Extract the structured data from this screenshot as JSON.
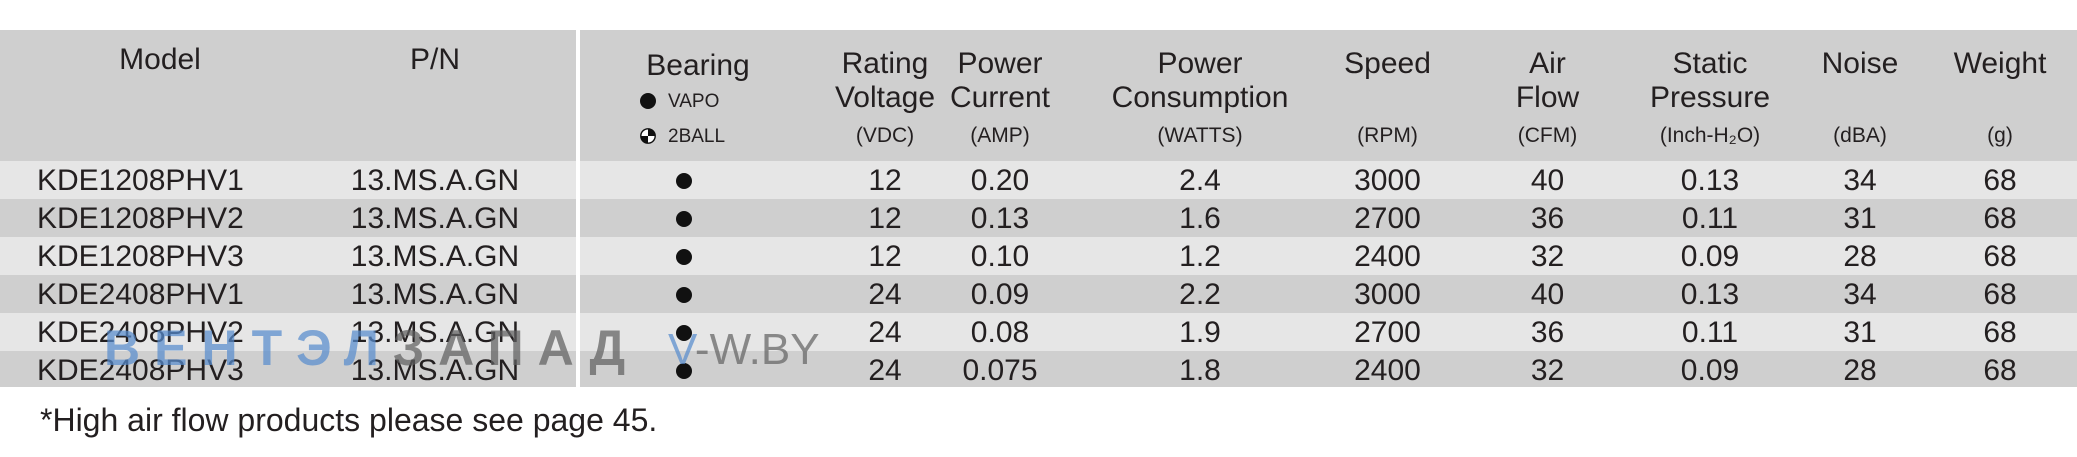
{
  "header": {
    "model": "Model",
    "pn": "P/N",
    "bearing": "Bearing",
    "legend_vapo": "VAPO",
    "legend_2ball": "2BALL",
    "rating_l1": "Rating",
    "rating_l2": "Voltage",
    "rating_unit": "(VDC)",
    "current_l1": "Power",
    "current_l2": "Current",
    "current_unit": "(AMP)",
    "consumption_l1": "Power",
    "consumption_l2": "Consumption",
    "consumption_unit": "(WATTS)",
    "speed": "Speed",
    "speed_unit": "(RPM)",
    "airflow_l1": "Air",
    "airflow_l2": "Flow",
    "airflow_unit": "(CFM)",
    "static_l1": "Static",
    "static_l2": "Pressure",
    "static_unit": "(Inch-H₂O)",
    "noise": "Noise",
    "noise_unit": "(dBA)",
    "weight": "Weight",
    "weight_unit": "(g)"
  },
  "rows": [
    {
      "model": "KDE1208PHV1",
      "pn": "13.MS.A.GN",
      "bearing": "VAPO",
      "voltage": "12",
      "current": "0.20",
      "power": "2.4",
      "speed": "3000",
      "airflow": "40",
      "pressure": "0.13",
      "noise": "34",
      "weight": "68"
    },
    {
      "model": "KDE1208PHV2",
      "pn": "13.MS.A.GN",
      "bearing": "VAPO",
      "voltage": "12",
      "current": "0.13",
      "power": "1.6",
      "speed": "2700",
      "airflow": "36",
      "pressure": "0.11",
      "noise": "31",
      "weight": "68"
    },
    {
      "model": "KDE1208PHV3",
      "pn": "13.MS.A.GN",
      "bearing": "VAPO",
      "voltage": "12",
      "current": "0.10",
      "power": "1.2",
      "speed": "2400",
      "airflow": "32",
      "pressure": "0.09",
      "noise": "28",
      "weight": "68"
    },
    {
      "model": "KDE2408PHV1",
      "pn": "13.MS.A.GN",
      "bearing": "VAPO",
      "voltage": "24",
      "current": "0.09",
      "power": "2.2",
      "speed": "3000",
      "airflow": "40",
      "pressure": "0.13",
      "noise": "34",
      "weight": "68"
    },
    {
      "model": "KDE2408PHV2",
      "pn": "13.MS.A.GN",
      "bearing": "VAPO",
      "voltage": "24",
      "current": "0.08",
      "power": "1.9",
      "speed": "2700",
      "airflow": "36",
      "pressure": "0.11",
      "noise": "31",
      "weight": "68"
    },
    {
      "model": "KDE2408PHV3",
      "pn": "13.MS.A.GN",
      "bearing": "VAPO",
      "voltage": "24",
      "current": "0.075",
      "power": "1.8",
      "speed": "2400",
      "airflow": "32",
      "pressure": "0.09",
      "noise": "28",
      "weight": "68"
    }
  ],
  "footnote": "*High air flow products please see page 45.",
  "watermark": {
    "part1": "ВЕНТЭЛ",
    "part2": "ЗАПАД",
    "site_v": "V",
    "site_rest": "-W.BY"
  },
  "colors": {
    "header_bg": "#cfcfcf",
    "row_light": "#e6e6e6",
    "row_dark": "#cfcfcf",
    "text": "#231f20",
    "watermark_blue": "#588ccd"
  }
}
